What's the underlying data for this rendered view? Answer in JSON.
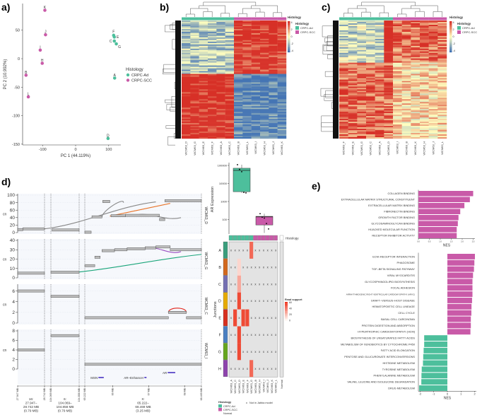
{
  "panel_labels": {
    "a": "a)",
    "b": "b)",
    "c": "c)",
    "d": "d)",
    "e": "e)"
  },
  "colors": {
    "crpc_ad": "#4dbf9c",
    "crpc_scc": "#c95aa8",
    "normal": "#ffffff",
    "heat_low": "#4575b4",
    "heat_mid": "#ffffbf",
    "heat_high": "#d73027",
    "read_high": "#ee3a24"
  },
  "chart_data": {
    "pca": {
      "type": "scatter",
      "xlabel": "PC 1 (44.119%)",
      "ylabel": "PC 2 (10.992%)",
      "xticks": [
        "-100",
        "0",
        "100"
      ],
      "xtick_values": [
        -100,
        0,
        100
      ],
      "yticks": [
        "-150",
        "-100",
        "-50",
        "0",
        "50"
      ],
      "ytick_values": [
        -150,
        -100,
        -50,
        0,
        50
      ],
      "xlim": [
        -160,
        130
      ],
      "ylim": [
        -155,
        92
      ],
      "legend": {
        "title": "Histology",
        "entries": [
          "CRPC-Ad",
          "CRPC-SCC"
        ],
        "placement": "right"
      },
      "points": [
        {
          "label": "K",
          "x": -93,
          "y": 85,
          "group": 1
        },
        {
          "label": "J",
          "x": -91,
          "y": 42,
          "group": 1
        },
        {
          "label": "I",
          "x": -107,
          "y": 15,
          "group": 1
        },
        {
          "label": "H",
          "x": -101,
          "y": -8,
          "group": 1
        },
        {
          "label": "B",
          "x": -150,
          "y": -29,
          "group": 1
        },
        {
          "label": "L",
          "x": -143,
          "y": -67,
          "group": 1
        },
        {
          "label": "F",
          "x": 115,
          "y": 41,
          "group": 0
        },
        {
          "label": "E",
          "x": 117,
          "y": 38,
          "group": 0
        },
        {
          "label": "C",
          "x": 117,
          "y": 31,
          "group": 0
        },
        {
          "label": "G",
          "x": 123,
          "y": 26,
          "group": 0
        },
        {
          "label": "A",
          "x": 118,
          "y": -34,
          "group": 0
        },
        {
          "label": "D",
          "x": 98,
          "y": -140,
          "group": 0
        }
      ]
    },
    "heatmap_b": {
      "type": "heatmap",
      "annotation_title": "Histology",
      "legend_title": "Histology",
      "scale_ticks": [
        "4",
        "2",
        "0",
        "-2",
        "-4"
      ],
      "groups": [
        "CRPC-Ad",
        "CRPC-SCC"
      ],
      "columns": [
        "WCM63_D",
        "WCM63_G",
        "WCM63_E",
        "WCM63_F",
        "WCM63_A",
        "WCM63_C",
        "WCM63_B",
        "WCM63_L",
        "WCM63_I",
        "WCM63_H",
        "WCM63_J",
        "WCM63_K"
      ],
      "column_groups": [
        0,
        0,
        0,
        0,
        0,
        0,
        1,
        1,
        1,
        1,
        1,
        1
      ]
    },
    "heatmap_c": {
      "type": "heatmap",
      "annotation_title": "Histology",
      "legend_title": "Histology",
      "scale_ticks": [
        "4",
        "2",
        "0",
        "-2",
        "-4"
      ],
      "groups": [
        "CRPC-Ad",
        "CRPC-SCC"
      ],
      "columns": [
        "WCM63_F",
        "WCM63_E",
        "WCM63_G",
        "WCM63_C",
        "WCM63_A",
        "WCM63_D",
        "WCM63_I",
        "WCM63_B",
        "WCM63_K",
        "WCM63_H",
        "WCM63_J",
        "WCM63_L"
      ],
      "column_groups": [
        0,
        0,
        0,
        0,
        0,
        0,
        1,
        1,
        1,
        1,
        1,
        1
      ]
    },
    "copy_number": {
      "type": "line",
      "ylabel": "cn",
      "regions": [
        {
          "chr": "16",
          "start": 27.947,
          "end": 28.742,
          "tick_labels": [
            "27.947 MB",
            "28.742 MB"
          ],
          "label_lines": [
            "16:",
            "27.947–",
            "28.742 MB",
            "(0.79 MB)"
          ]
        },
        {
          "chr": "6",
          "start": 104.069,
          "end": 104.858,
          "tick_labels": [
            "104.069 MB",
            "104.858 MB"
          ],
          "label_lines": [
            "6:",
            "104.069–",
            "104.858 MB",
            "(0.79 MB)"
          ]
        },
        {
          "chr": "X",
          "start": 65.222,
          "end": 68.469,
          "tick_labels": [
            "65.222 MB",
            "68.469 MB"
          ],
          "label_lines": [
            "X:",
            "65.222–",
            "68.469 MB",
            "(3.25 MB)"
          ]
        }
      ],
      "inner_ticks": [
        {
          "chr": "X",
          "pos": 66,
          "label": "66 MB"
        },
        {
          "chr": "X",
          "pos": 67,
          "label": "67 MB"
        },
        {
          "chr": "X",
          "pos": 68,
          "label": "68 MB"
        }
      ],
      "genes": [
        {
          "name": "MSN",
          "chr": "X",
          "start": 65.6,
          "end": 65.75
        },
        {
          "name": "AR–Enhancer",
          "chr": "X",
          "start": 66.88,
          "end": 66.94
        },
        {
          "name": "AR",
          "chr": "X",
          "start": 67.53,
          "end": 67.74
        }
      ],
      "tracks": [
        {
          "sample": "WCM63_D",
          "ymax": 100,
          "yticks": [
            "0",
            "20",
            "40",
            "60",
            "80",
            "100"
          ],
          "ytick_values": [
            0,
            20,
            40,
            60,
            80,
            100
          ],
          "segments": [
            [
              "16",
              27.947,
              28.1,
              8
            ],
            [
              "16",
              28.1,
              28.742,
              10
            ],
            [
              "6",
              104.1,
              104.858,
              7
            ],
            [
              "X",
              65.222,
              65.4,
              1
            ],
            [
              "X",
              65.42,
              65.7,
              42
            ],
            [
              "X",
              65.72,
              65.92,
              83
            ],
            [
              "X",
              65.95,
              66.35,
              45
            ],
            [
              "X",
              66.35,
              67.3,
              46
            ],
            [
              "X",
              67.3,
              67.45,
              35
            ],
            [
              "X",
              67.45,
              68.469,
              85
            ]
          ],
          "junctions": [
            {
              "from": [
                "16",
                28.742,
                10
              ],
              "to": [
                "X",
                67.2,
                82
              ],
              "color": "#888888"
            },
            {
              "from": [
                "X",
                65.92,
                44
              ],
              "to": [
                "X",
                67.6,
                78
              ],
              "color": "#e8742a"
            },
            {
              "from": [
                "X",
                65.7,
                42
              ],
              "to": [
                "X",
                66.3,
                80
              ],
              "color": "#888888"
            },
            {
              "from": [
                "X",
                66.6,
                46
              ],
              "to": [
                "X",
                67.9,
                40
              ],
              "color": "#888888"
            }
          ]
        },
        {
          "sample": "WCM63_G",
          "ymax": 40,
          "yticks": [
            "0",
            "10",
            "20",
            "30",
            "40"
          ],
          "ytick_values": [
            0,
            10,
            20,
            30,
            40
          ],
          "segments": [
            [
              "16",
              27.947,
              28.742,
              5
            ],
            [
              "6",
              104.069,
              104.858,
              6
            ],
            [
              "X",
              65.222,
              65.5,
              13
            ],
            [
              "X",
              65.5,
              65.65,
              22
            ],
            [
              "X",
              65.7,
              66.05,
              29
            ],
            [
              "X",
              66.05,
              66.4,
              30
            ],
            [
              "X",
              66.4,
              66.9,
              31
            ],
            [
              "X",
              66.9,
              67.2,
              32
            ],
            [
              "X",
              67.2,
              67.6,
              33
            ],
            [
              "X",
              67.6,
              68.469,
              30
            ]
          ],
          "junctions": [
            {
              "from": [
                "6",
                104.8,
                6
              ],
              "to": [
                "X",
                68.469,
                25
              ],
              "color": "#1aa57a"
            },
            {
              "from": [
                "X",
                66.9,
                31
              ],
              "to": [
                "X",
                67.9,
                28
              ],
              "color": "#9b4fc2"
            }
          ]
        },
        {
          "sample": "WCM63_C",
          "ymax": 7,
          "yticks": [
            "0",
            "2",
            "4",
            "6"
          ],
          "ytick_values": [
            0,
            2,
            4,
            6
          ],
          "segments": [
            [
              "16",
              27.947,
              28.742,
              6
            ],
            [
              "6",
              104.069,
              104.858,
              5
            ],
            [
              "X",
              65.222,
              67.55,
              1
            ],
            [
              "X",
              67.55,
              68.05,
              2
            ],
            [
              "X",
              68.05,
              68.469,
              1
            ]
          ],
          "junctions": [
            {
              "from": [
                "X",
                67.55,
                2
              ],
              "to": [
                "X",
                68.05,
                2
              ],
              "color": "#e2231a"
            }
          ]
        },
        {
          "sample": "WCM63_I",
          "ymax": 8,
          "yticks": [
            "0",
            "2",
            "4",
            "6",
            "8"
          ],
          "ytick_values": [
            0,
            2,
            4,
            6,
            8
          ],
          "segments": [
            [
              "16",
              27.947,
              28.742,
              4
            ],
            [
              "6",
              104.069,
              104.858,
              7
            ],
            [
              "X",
              65.222,
              68.469,
              1
            ]
          ],
          "junctions": []
        }
      ]
    },
    "ar_expression": {
      "type": "box",
      "ylabel": "AR Expression",
      "yticks": [
        "100",
        "1000",
        "10000",
        "100000"
      ],
      "ytick_values": [
        100,
        1000,
        10000,
        100000
      ],
      "groups": [
        {
          "name": "CRPC-Ad",
          "min": 3000,
          "q1": 3500,
          "median": 53000,
          "q3": 70000,
          "max": 110000,
          "points": [
            110000,
            60000,
            45000,
            3200,
            3000
          ]
        },
        {
          "name": "CRPC-SCC",
          "min": 18,
          "q1": 50,
          "median": 140,
          "q3": 150,
          "max": 210,
          "points": [
            210,
            135,
            120,
            60,
            30
          ]
        }
      ]
    },
    "junctions": {
      "type": "heatmap",
      "ylabel": "Junctions",
      "annotation_label": "Histology",
      "rows": [
        "A",
        "B",
        "C",
        "D",
        "E",
        "F",
        "G",
        "H"
      ],
      "row_colors": [
        "#3a9e7d",
        "#d2691e",
        "#7570b3",
        "#e6ab02",
        "#d7301f",
        "#4a7fc1",
        "#66a61e",
        "#8e44ad"
      ],
      "columns": [
        "WCM63_A",
        "WCM63_C",
        "WCM63_D",
        "WCM63_E",
        "WCM63_F",
        "WCM63_G",
        "WCM63_B",
        "WCM63_H",
        "WCM63_I",
        "WCM63_J",
        "WCM63_K",
        "WCM63_L"
      ],
      "column_groups": [
        0,
        0,
        0,
        0,
        0,
        0,
        1,
        1,
        1,
        1,
        1,
        1
      ],
      "normal_label": "Normal",
      "values": [
        [
          null,
          null,
          null,
          null,
          null,
          45,
          null,
          null,
          null,
          null,
          null,
          null
        ],
        [
          null,
          null,
          10,
          null,
          null,
          null,
          null,
          null,
          null,
          null,
          null,
          null
        ],
        [
          null,
          null,
          25,
          null,
          null,
          null,
          null,
          null,
          null,
          null,
          null,
          null
        ],
        [
          null,
          null,
          55,
          null,
          null,
          null,
          null,
          null,
          null,
          null,
          null,
          null
        ],
        [
          null,
          55,
          null,
          55,
          55,
          null,
          null,
          null,
          null,
          null,
          null,
          null
        ],
        [
          null,
          null,
          55,
          null,
          null,
          null,
          null,
          null,
          null,
          null,
          null,
          null
        ],
        [
          null,
          null,
          55,
          null,
          null,
          null,
          null,
          null,
          null,
          null,
          null,
          null
        ],
        [
          null,
          null,
          null,
          null,
          null,
          45,
          null,
          null,
          null,
          null,
          null,
          null
        ]
      ],
      "legend": {
        "title": "Read support",
        "ticks": [
          "60",
          "40",
          "20",
          "0"
        ],
        "range": [
          0,
          60
        ]
      },
      "missing_symbol": "x",
      "missing_note": "Not in Jabba model",
      "histology_legend": {
        "title": "Histology",
        "entries": [
          "CRPC-Ad",
          "CRPC-SCC",
          "Normal"
        ]
      }
    },
    "gsea_go": {
      "type": "bar",
      "xlabel": "NES",
      "xticks": [
        "0.0",
        "0.5",
        "1.0",
        "1.5",
        "2.0",
        "2.5"
      ],
      "xtick_values": [
        0,
        0.5,
        1,
        1.5,
        2,
        2.5
      ],
      "categories": [
        "COLLAGEN BINDING",
        "EXTRACELLULAR MATRIX STRUCTURAL CONSTITUENT",
        "EXTRACELLULAR MATRIX BINDING",
        "FIBRONECTIN BINDING",
        "GROWTH FACTOR BINDING",
        "GLYCOSAMINOGLYCAN BINDING",
        "HIJACKED MOLECULAR FUNCTION",
        "RECEPTOR INHIBITOR ACTIVITY"
      ],
      "values": [
        2.5,
        2.35,
        2.1,
        1.91,
        1.83,
        1.8,
        1.75,
        1.75
      ]
    },
    "gsea_kegg": {
      "type": "bar",
      "xlabel": "NES",
      "xticks": [
        "-2",
        "-1",
        "0",
        "1",
        "2"
      ],
      "xtick_values": [
        -2,
        -1,
        0,
        1,
        2
      ],
      "categories": [
        "ECM–RECEPTOR INTERACTION",
        "PHAGOSOME",
        "TGF–BETA SIGNALING PATHWAY",
        "VIRAL MYOCARDITIS",
        "GLYCOSPHINGOLIPID BIOSYNTHESIS",
        "FOCAL ADHESION",
        "ARRHYTHMOGENIC RIGHT VENTRICULAR CARDIOMYOPATHY (ARVC)",
        "GRAFT–VERSUS–HOST DISEASE",
        "HEMATOPOIETIC CELL LINEAGE",
        "CELL CYCLE",
        "BASAL CELL CARCINOMA",
        "PROTEIN DIGESTION AND ABSORPTION",
        "HYPERTROPHIC CARDIOMYOPATHY (HCM)",
        "BIOSYNTHESIS OF UNSATURATED FATTY ACIDS",
        "METABOLISM OF XENOBIOTICS BY CYTOCHROME P450",
        "FATTY ACID ELONGATION",
        "PENTOSE AND GLUCURONATE INTERCONVERSIONS",
        "HISTIDINE METABOLISM",
        "TYROSINE METABOLISM",
        "PHENYLALANINE METABOLISM",
        "VALINE, LEUCINE AND ISOLEUCINE DEGRADATION",
        "DRUG METABOLISM"
      ],
      "values": [
        2.02,
        1.98,
        1.95,
        1.88,
        1.84,
        1.84,
        1.84,
        1.81,
        1.77,
        1.76,
        1.72,
        1.72,
        1.69,
        -1.7,
        -1.7,
        -1.74,
        -1.77,
        -1.79,
        -1.88,
        -1.9,
        -1.91,
        -2.07
      ]
    }
  }
}
